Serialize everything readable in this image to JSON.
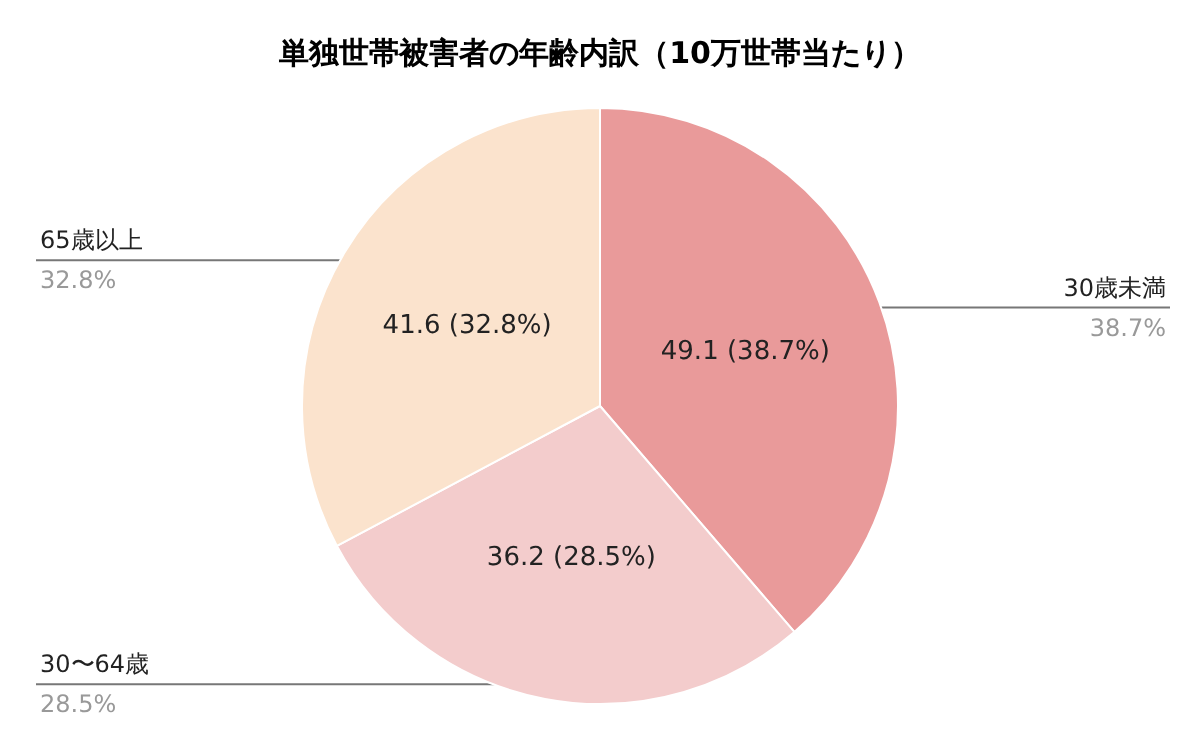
{
  "chart_data": {
    "type": "pie",
    "title": "単独世帯被害者の年齢内訳（10万世帯当たり）",
    "categories": [
      "30歳未満",
      "30〜64歳",
      "65歳以上"
    ],
    "values": [
      49.1,
      36.2,
      41.6
    ],
    "colors": [
      "#e99a9a",
      "#f3cccc",
      "#fbe3cd"
    ],
    "value_labels": [
      "49.1 (38.7%)",
      "36.2 (28.5%)",
      "41.6 (32.8%)"
    ],
    "annotations": [
      "38.7%",
      "28.5%",
      "32.8%"
    ]
  }
}
